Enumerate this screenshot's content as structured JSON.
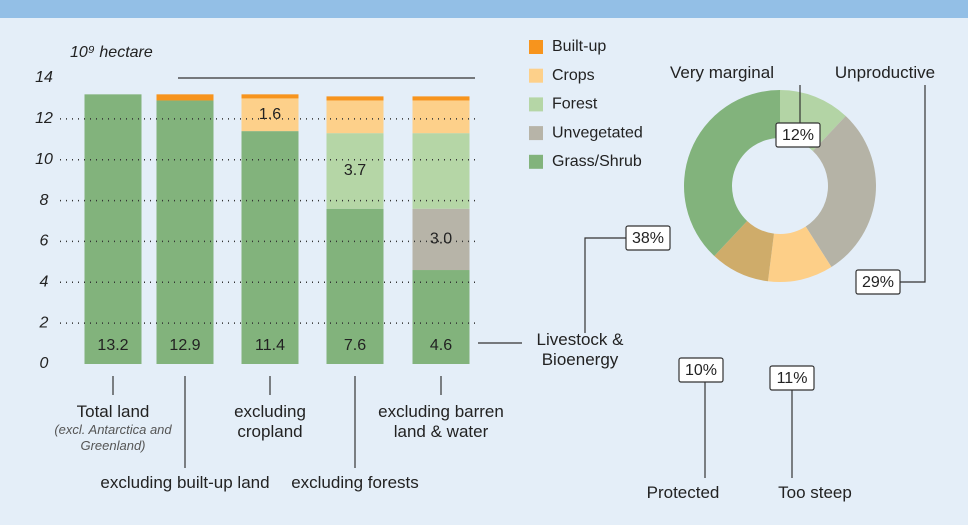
{
  "chart_data": [
    {
      "type": "stacked_bar",
      "ylabel": "10⁹ hectare",
      "categories": [
        "Total land",
        "excluding built-up land",
        "excluding cropland",
        "excluding forests",
        "excluding barren land & water"
      ],
      "category_note": "(excl. Antarctica and Greenland)",
      "ylim": [
        0,
        14
      ],
      "yticks": [
        0,
        2,
        4,
        6,
        8,
        10,
        12,
        14
      ],
      "grid": true,
      "series": [
        {
          "name": "Built-up",
          "color": "#f7941d",
          "values": [
            null,
            0.3,
            0.2,
            0.2,
            0.2
          ]
        },
        {
          "name": "Crops",
          "color": "#fdd08a",
          "values": [
            null,
            null,
            1.6,
            1.6,
            1.6
          ],
          "value_labels": [
            null,
            null,
            "1.6",
            null,
            null
          ]
        },
        {
          "name": "Forest",
          "color": "#b5d6a6",
          "values": [
            null,
            null,
            null,
            3.7,
            3.7
          ],
          "value_labels": [
            null,
            null,
            null,
            "3.7",
            null
          ]
        },
        {
          "name": "Unvegetated",
          "color": "#b7b4a8",
          "values": [
            null,
            null,
            null,
            null,
            3.0
          ],
          "value_labels": [
            null,
            null,
            null,
            null,
            "3.0"
          ]
        },
        {
          "name": "Grass/Shrub",
          "color": "#82b37c",
          "values": [
            13.2,
            12.9,
            11.4,
            7.6,
            4.6
          ],
          "value_labels": [
            "13.2",
            "12.9",
            "11.4",
            "7.6",
            "4.6"
          ]
        }
      ]
    },
    {
      "type": "donut",
      "categories": [
        "Very marginal",
        "Unproductive",
        "Too steep",
        "Protected",
        "Livestock & Bioenergy"
      ],
      "values": [
        12,
        29,
        11,
        10,
        38
      ],
      "value_labels": [
        "12%",
        "29%",
        "11%",
        "10%",
        "38%"
      ],
      "colors": [
        "#b3d4a5",
        "#b5b3a6",
        "#fdcf88",
        "#cfac6a",
        "#82b37c"
      ]
    }
  ]
}
